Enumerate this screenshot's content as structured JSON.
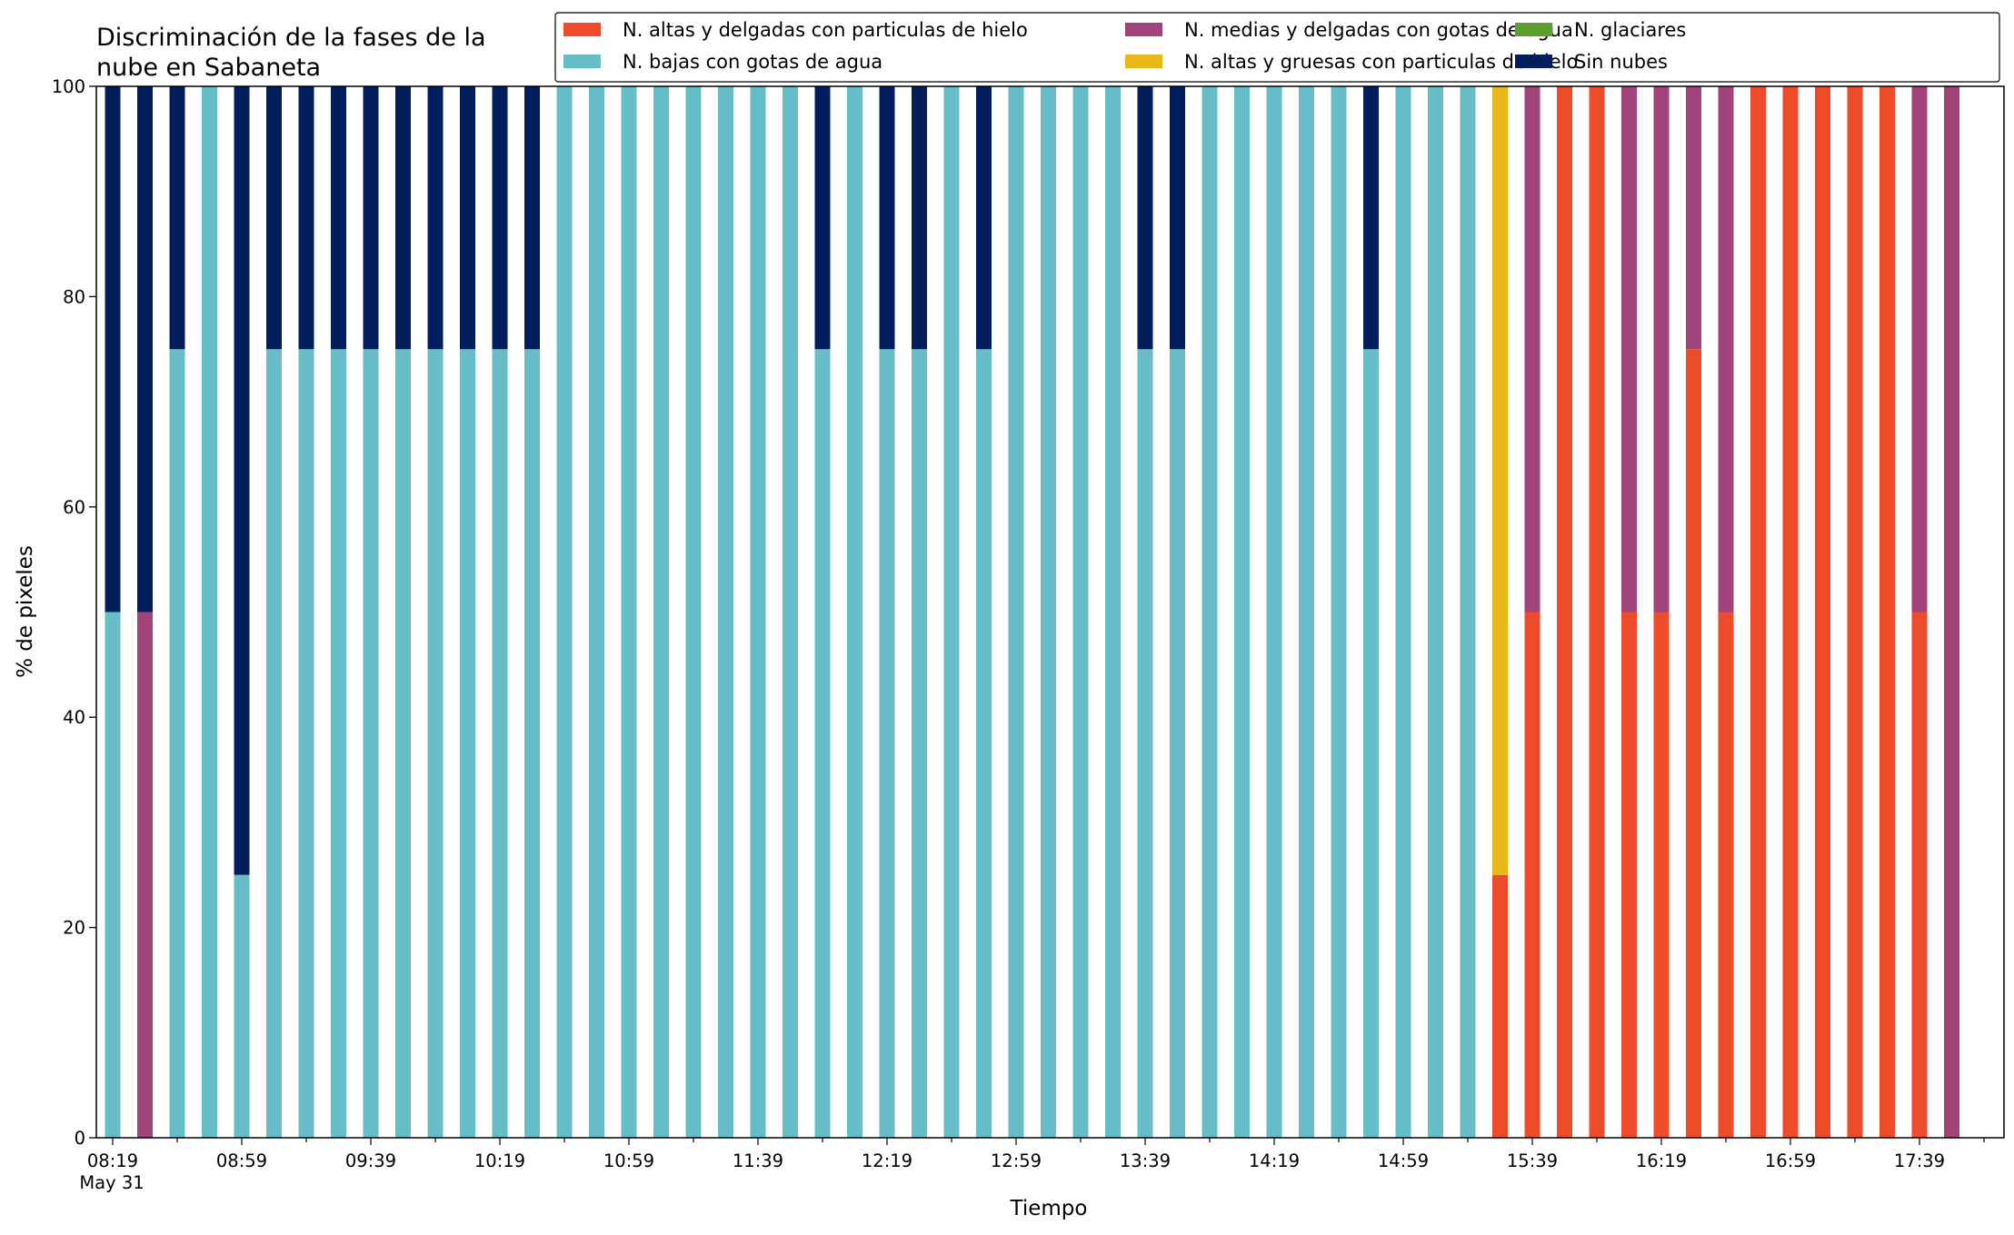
{
  "chart_data": {
    "type": "bar",
    "stacked": true,
    "title_lines": [
      "Discriminación de la fases de la",
      "nube en Sabaneta"
    ],
    "xlabel": "Tiempo",
    "ylabel": "% de pixeles",
    "ylim": [
      0,
      100
    ],
    "yticks": [
      0,
      20,
      40,
      60,
      80,
      100
    ],
    "grid": false,
    "legend_position": "top-right",
    "x_tick_labels": [
      "08:19",
      "08:59",
      "09:39",
      "10:19",
      "10:59",
      "11:39",
      "12:19",
      "12:59",
      "13:39",
      "14:19",
      "14:59",
      "15:39",
      "16:19",
      "16:59",
      "17:39"
    ],
    "x_tick_sublabel": "May 31",
    "categories": [
      "08:19",
      "08:29",
      "08:39",
      "08:49",
      "08:59",
      "09:09",
      "09:19",
      "09:29",
      "09:39",
      "09:49",
      "09:59",
      "10:09",
      "10:19",
      "10:29",
      "10:39",
      "10:49",
      "10:59",
      "11:09",
      "11:19",
      "11:29",
      "11:39",
      "11:49",
      "11:59",
      "12:09",
      "12:19",
      "12:29",
      "12:39",
      "12:49",
      "12:59",
      "13:09",
      "13:19",
      "13:29",
      "13:39",
      "13:49",
      "13:59",
      "14:09",
      "14:19",
      "14:29",
      "14:39",
      "14:49",
      "14:59",
      "15:09",
      "15:19",
      "15:29",
      "15:39",
      "15:49",
      "15:59",
      "16:09",
      "16:19",
      "16:29",
      "16:39",
      "16:49",
      "16:59",
      "17:09",
      "17:19",
      "17:29",
      "17:39",
      "17:49"
    ],
    "series": [
      {
        "name": "N. altas y delgadas con particulas de hielo",
        "color": "#EE4B2B",
        "values": [
          0,
          0,
          0,
          0,
          0,
          0,
          0,
          0,
          0,
          0,
          0,
          0,
          0,
          0,
          0,
          0,
          0,
          0,
          0,
          0,
          0,
          0,
          0,
          0,
          0,
          0,
          0,
          0,
          0,
          0,
          0,
          0,
          0,
          0,
          0,
          0,
          0,
          0,
          0,
          0,
          0,
          0,
          0,
          25,
          50,
          100,
          100,
          50,
          50,
          75,
          50,
          100,
          100,
          100,
          100,
          100,
          50,
          0
        ]
      },
      {
        "name": "N. altas y gruesas con particulas de hielo",
        "color": "#E8B818",
        "values": [
          0,
          0,
          0,
          0,
          0,
          0,
          0,
          0,
          0,
          0,
          0,
          0,
          0,
          0,
          0,
          0,
          0,
          0,
          0,
          0,
          0,
          0,
          0,
          0,
          0,
          0,
          0,
          0,
          0,
          0,
          0,
          0,
          0,
          0,
          0,
          0,
          0,
          0,
          0,
          0,
          0,
          0,
          0,
          75,
          0,
          0,
          0,
          0,
          0,
          0,
          0,
          0,
          0,
          0,
          0,
          0,
          0,
          0
        ]
      },
      {
        "name": "N. bajas con gotas de agua",
        "color": "#66BDC8",
        "values": [
          50,
          0,
          75,
          100,
          25,
          75,
          75,
          75,
          75,
          75,
          75,
          75,
          75,
          75,
          100,
          100,
          100,
          100,
          100,
          100,
          100,
          100,
          75,
          100,
          75,
          75,
          100,
          75,
          100,
          100,
          100,
          100,
          75,
          75,
          100,
          100,
          100,
          100,
          100,
          75,
          100,
          100,
          100,
          0,
          0,
          0,
          0,
          0,
          0,
          0,
          0,
          0,
          0,
          0,
          0,
          0,
          0,
          0
        ]
      },
      {
        "name": "N. glaciares",
        "color": "#5E9E2F",
        "values": [
          0,
          0,
          0,
          0,
          0,
          0,
          0,
          0,
          0,
          0,
          0,
          0,
          0,
          0,
          0,
          0,
          0,
          0,
          0,
          0,
          0,
          0,
          0,
          0,
          0,
          0,
          0,
          0,
          0,
          0,
          0,
          0,
          0,
          0,
          0,
          0,
          0,
          0,
          0,
          0,
          0,
          0,
          0,
          0,
          0,
          0,
          0,
          0,
          0,
          0,
          0,
          0,
          0,
          0,
          0,
          0,
          0,
          0
        ]
      },
      {
        "name": "N. medias y delgadas con gotas de agua",
        "color": "#A0437A",
        "values": [
          0,
          50,
          0,
          0,
          0,
          0,
          0,
          0,
          0,
          0,
          0,
          0,
          0,
          0,
          0,
          0,
          0,
          0,
          0,
          0,
          0,
          0,
          0,
          0,
          0,
          0,
          0,
          0,
          0,
          0,
          0,
          0,
          0,
          0,
          0,
          0,
          0,
          0,
          0,
          0,
          0,
          0,
          0,
          0,
          50,
          0,
          0,
          50,
          50,
          25,
          50,
          0,
          0,
          0,
          0,
          0,
          50,
          100
        ]
      },
      {
        "name": "Sin nubes",
        "color": "#031E5C",
        "values": [
          50,
          50,
          25,
          0,
          75,
          25,
          25,
          25,
          25,
          25,
          25,
          25,
          25,
          25,
          0,
          0,
          0,
          0,
          0,
          0,
          0,
          0,
          25,
          0,
          25,
          25,
          0,
          25,
          0,
          0,
          0,
          0,
          25,
          25,
          0,
          0,
          0,
          0,
          0,
          25,
          0,
          0,
          0,
          0,
          0,
          0,
          0,
          0,
          0,
          0,
          0,
          0,
          0,
          0,
          0,
          0,
          0,
          0
        ]
      }
    ],
    "legend_order": [
      0,
      2,
      4,
      1,
      3,
      5
    ]
  }
}
